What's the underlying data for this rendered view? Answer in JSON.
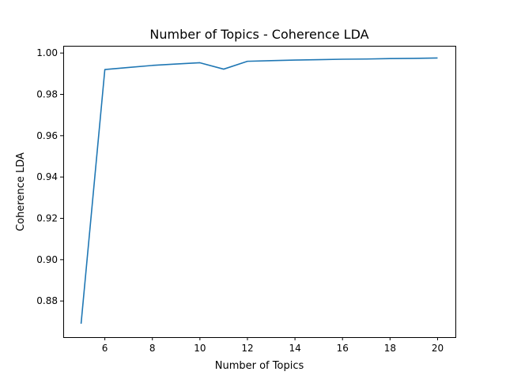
{
  "chart_data": {
    "type": "line",
    "title": "Number of Topics - Coherence LDA",
    "xlabel": "Number of Topics",
    "ylabel": "Coherence LDA",
    "xlim": [
      4.25,
      20.75
    ],
    "ylim": [
      0.8625,
      1.0035
    ],
    "xticks": [
      6,
      8,
      10,
      12,
      14,
      16,
      18,
      20
    ],
    "yticks": [
      0.88,
      0.9,
      0.92,
      0.94,
      0.96,
      0.98,
      1.0
    ],
    "ytick_labels": [
      "0.88",
      "0.90",
      "0.92",
      "0.94",
      "0.96",
      "0.98",
      "1.00"
    ],
    "grid": false,
    "series": [
      {
        "color": "#1f77b4",
        "x": [
          5,
          6,
          7,
          8,
          9,
          10,
          11,
          12,
          13,
          14,
          15,
          16,
          17,
          18,
          19,
          20
        ],
        "y": [
          0.869,
          0.992,
          0.993,
          0.994,
          0.9947,
          0.9953,
          0.9922,
          0.996,
          0.9963,
          0.9966,
          0.9968,
          0.997,
          0.9971,
          0.9973,
          0.9974,
          0.9976
        ]
      }
    ]
  }
}
